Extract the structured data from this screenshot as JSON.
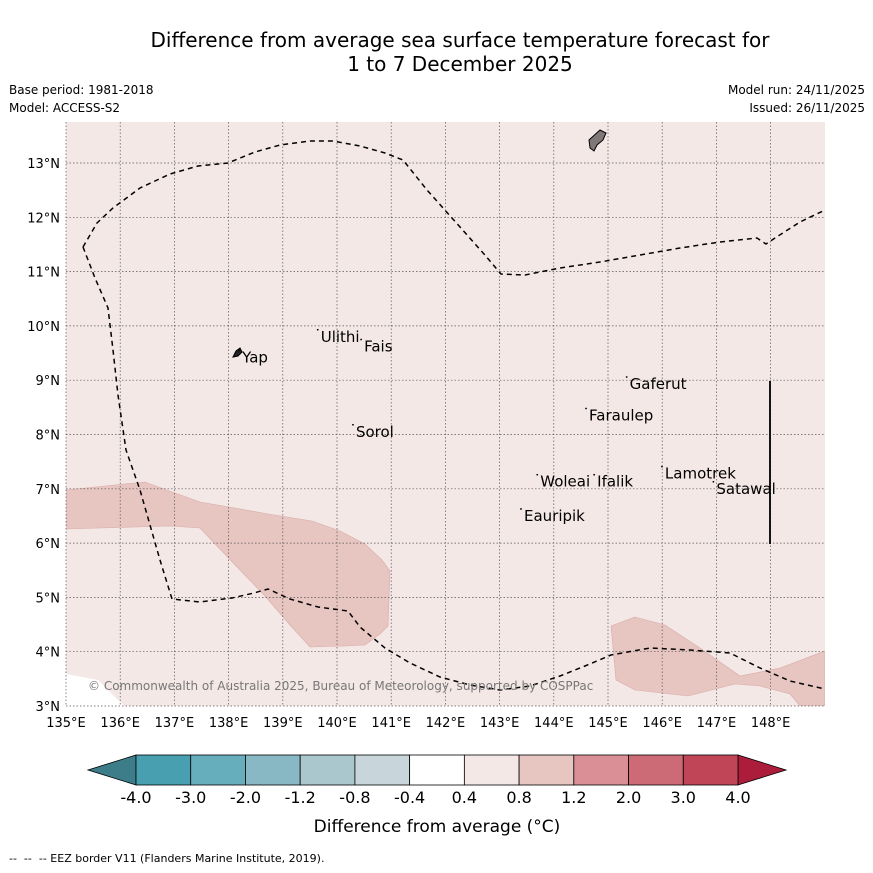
{
  "title": {
    "line1": "Difference from average sea surface temperature forecast for",
    "line2": "1 to 7 December 2025"
  },
  "meta": {
    "base_period": "Base period: 1981-2018",
    "model": "Model: ACCESS-S2",
    "model_run": "Model run: 24/11/2025",
    "issued": "Issued: 26/11/2025"
  },
  "map": {
    "lon_ticks": [
      "135°E",
      "136°E",
      "137°E",
      "138°E",
      "139°E",
      "140°E",
      "141°E",
      "142°E",
      "143°E",
      "144°E",
      "145°E",
      "146°E",
      "147°E",
      "148°E"
    ],
    "lat_ticks": [
      "3°N",
      "4°N",
      "5°N",
      "6°N",
      "7°N",
      "8°N",
      "9°N",
      "10°N",
      "11°N",
      "12°N",
      "13°N"
    ],
    "places": [
      {
        "name": "Ulithi",
        "lon": 139.7,
        "lat": 9.8
      },
      {
        "name": "Fais",
        "lon": 140.5,
        "lat": 9.62
      },
      {
        "name": "Yap",
        "lon": 138.25,
        "lat": 9.42
      },
      {
        "name": "Gaferut",
        "lon": 145.4,
        "lat": 8.93
      },
      {
        "name": "Faraulep",
        "lon": 144.65,
        "lat": 8.35
      },
      {
        "name": "Sorol",
        "lon": 140.35,
        "lat": 8.05
      },
      {
        "name": "Woleai",
        "lon": 143.75,
        "lat": 7.13
      },
      {
        "name": "Ifalik",
        "lon": 144.8,
        "lat": 7.13
      },
      {
        "name": "Lamotrek",
        "lon": 146.05,
        "lat": 7.28
      },
      {
        "name": "Satawal",
        "lon": 147.0,
        "lat": 7.0
      },
      {
        "name": "Eauripik",
        "lon": 143.45,
        "lat": 6.5
      }
    ],
    "copyright": "© Commonwealth of Australia 2025, Bureau of Meteorology, supported by COSPPac",
    "background_color": "#f4e8e6",
    "anomaly_0_8_to_1_2_color": "#e7c5c1"
  },
  "colorbar": {
    "labels": [
      "-4.0",
      "-3.0",
      "-2.0",
      "-1.2",
      "-0.8",
      "-0.4",
      "0.4",
      "0.8",
      "1.2",
      "2.0",
      "3.0",
      "4.0"
    ],
    "colors": [
      "#479fb0",
      "#67aebd",
      "#88b8c4",
      "#a9c7cd",
      "#c8d5da",
      "#ffffff",
      "#f4e8e6",
      "#e7c5c1",
      "#d98f95",
      "#cc6b75",
      "#c04557"
    ],
    "under_color": "#3c7d89",
    "over_color": "#ac1d3c",
    "label": "Difference from average (°C)"
  },
  "footer": "--  --  -- EEZ border V11 (Flanders Marine Institute, 2019)."
}
